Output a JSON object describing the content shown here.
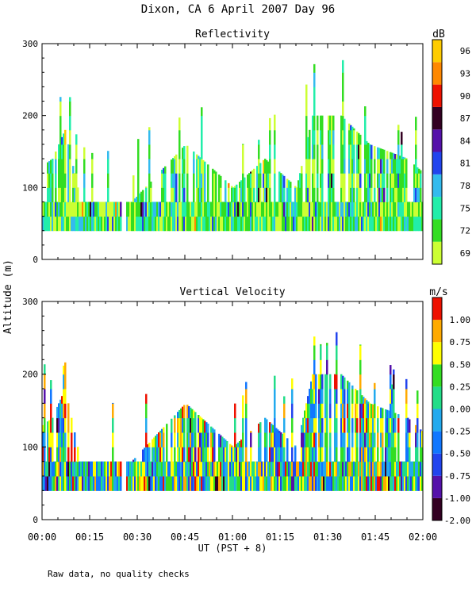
{
  "title": "Dixon, CA   6 April 2007   Day  96",
  "ylabel": "Altitude (m)",
  "xlabel": "UT  (PST + 8)",
  "footnote": "Raw data, no quality checks",
  "x_ticks": [
    "00:00",
    "00:15",
    "00:30",
    "00:45",
    "01:00",
    "01:15",
    "01:30",
    "01:45",
    "02:00"
  ],
  "x_range_hours": [
    0,
    2
  ],
  "y_ticks": [
    0,
    100,
    200,
    300
  ],
  "ylim": [
    0,
    300
  ],
  "chart_data": [
    {
      "type": "heatmap",
      "title": "Reflectivity",
      "colorbar_unit": "dB",
      "colorbar_ticks": [
        "69",
        "72",
        "75",
        "78",
        "81",
        "84",
        "87",
        "90",
        "93",
        "96"
      ],
      "colorbar_colors": [
        "#ccff33",
        "#33dd22",
        "#22eeaa",
        "#33bbee",
        "#2244ee",
        "#5511aa",
        "#330022",
        "#ee1100",
        "#ff8800",
        "#ffcc00"
      ],
      "echo_base_altitude_m": 40,
      "echo_top_samples": [
        {
          "time": "00:00",
          "top_m": 130
        },
        {
          "time": "00:03",
          "top_m": 140
        },
        {
          "time": "00:07",
          "top_m": 180
        },
        {
          "time": "00:12",
          "top_m": 80
        },
        {
          "time": "00:20",
          "top_m": 80
        },
        {
          "time": "00:28",
          "top_m": 80
        },
        {
          "time": "00:45",
          "top_m": 160
        },
        {
          "time": "01:00",
          "top_m": 100
        },
        {
          "time": "01:10",
          "top_m": 140
        },
        {
          "time": "01:20",
          "top_m": 100
        },
        {
          "time": "01:25",
          "top_m": 200
        },
        {
          "time": "01:34",
          "top_m": 200
        },
        {
          "time": "01:43",
          "top_m": 160
        },
        {
          "time": "01:55",
          "top_m": 140
        },
        {
          "time": "02:00",
          "top_m": 120
        }
      ]
    },
    {
      "type": "heatmap",
      "title": "Vertical Velocity",
      "colorbar_unit": "m/s",
      "colorbar_ticks": [
        "-2.00",
        "-1.00",
        "-0.75",
        "-0.50",
        "-0.25",
        "0.00",
        "0.25",
        "0.50",
        "0.75",
        "1.00"
      ],
      "colorbar_colors": [
        "#330022",
        "#5511aa",
        "#2244ee",
        "#1177ff",
        "#22aaee",
        "#22dd88",
        "#33dd22",
        "#ffff00",
        "#ffaa00",
        "#ee1100"
      ],
      "echo_base_altitude_m": 40,
      "echo_top_samples": [
        {
          "time": "00:00",
          "top_m": 130
        },
        {
          "time": "00:03",
          "top_m": 140
        },
        {
          "time": "00:07",
          "top_m": 180
        },
        {
          "time": "00:12",
          "top_m": 80
        },
        {
          "time": "00:20",
          "top_m": 80
        },
        {
          "time": "00:28",
          "top_m": 80
        },
        {
          "time": "00:45",
          "top_m": 160
        },
        {
          "time": "01:00",
          "top_m": 100
        },
        {
          "time": "01:10",
          "top_m": 140
        },
        {
          "time": "01:20",
          "top_m": 100
        },
        {
          "time": "01:25",
          "top_m": 200
        },
        {
          "time": "01:34",
          "top_m": 200
        },
        {
          "time": "01:43",
          "top_m": 160
        },
        {
          "time": "01:55",
          "top_m": 140
        },
        {
          "time": "02:00",
          "top_m": 120
        }
      ]
    }
  ]
}
